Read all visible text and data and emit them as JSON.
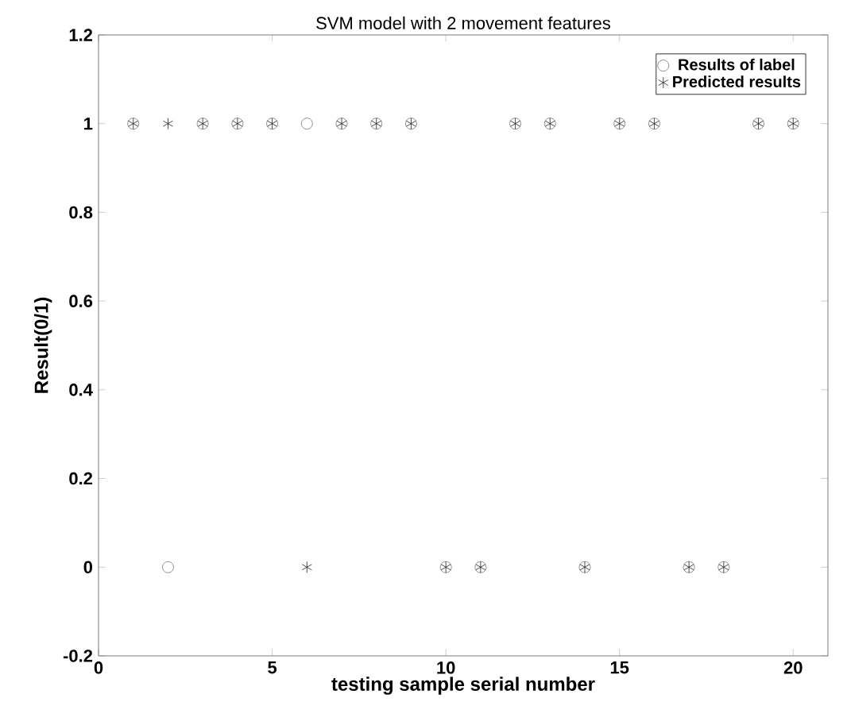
{
  "chart_data": {
    "type": "scatter",
    "title": "SVM model with 2 movement features",
    "xlabel": "testing sample serial number",
    "ylabel": "Result(0/1)",
    "x": [
      1,
      2,
      3,
      4,
      5,
      6,
      7,
      8,
      9,
      10,
      11,
      12,
      13,
      14,
      15,
      16,
      17,
      18,
      19,
      20
    ],
    "series": [
      {
        "name": "Results of label",
        "color": "#707070",
        "marker": "circle",
        "values": [
          1,
          0,
          1,
          1,
          1,
          1,
          1,
          1,
          1,
          0,
          0,
          1,
          1,
          0,
          1,
          1,
          0,
          0,
          1,
          1
        ]
      },
      {
        "name": "Predicted results",
        "color": "#202020",
        "marker": "cross",
        "values": [
          1,
          1,
          1,
          1,
          1,
          0,
          1,
          1,
          1,
          0,
          0,
          1,
          1,
          0,
          1,
          1,
          0,
          0,
          1,
          1
        ]
      }
    ],
    "xlim": [
      0,
      21
    ],
    "xticks": [
      0,
      5,
      10,
      15,
      20
    ],
    "ylim": [
      -0.2,
      1.2
    ],
    "yticks": [
      -0.2,
      0,
      0.2,
      0.4,
      0.6,
      0.8,
      1,
      1.2
    ],
    "grid": false,
    "legend": "top right"
  }
}
